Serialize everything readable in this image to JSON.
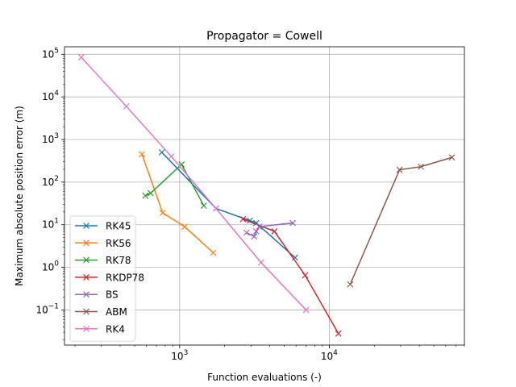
{
  "chart_data": {
    "type": "line",
    "title": "Propagator = Cowell",
    "xlabel": "Function evaluations (-)",
    "ylabel": "Maximum absolute position error (m)",
    "xscale": "log",
    "yscale": "log",
    "xlim": [
      170,
      80000
    ],
    "ylim": [
      0.015,
      150000
    ],
    "grid": true,
    "legend_position": "lower-left",
    "x_ticks": [
      {
        "value": 1000,
        "base": "10",
        "exp": "3"
      },
      {
        "value": 10000,
        "base": "10",
        "exp": "4"
      }
    ],
    "y_ticks": [
      {
        "value": 0.1,
        "base": "10",
        "exp": "−1"
      },
      {
        "value": 1,
        "base": "10",
        "exp": "0"
      },
      {
        "value": 10,
        "base": "10",
        "exp": "1"
      },
      {
        "value": 100,
        "base": "10",
        "exp": "2"
      },
      {
        "value": 1000,
        "base": "10",
        "exp": "3"
      },
      {
        "value": 10000,
        "base": "10",
        "exp": "4"
      },
      {
        "value": 100000,
        "base": "10",
        "exp": "5"
      }
    ],
    "series": [
      {
        "name": "RK45",
        "color": "#1f77b4",
        "points": [
          [
            760,
            500
          ],
          [
            1750,
            24
          ],
          [
            2950,
            12.5
          ],
          [
            3250,
            11
          ],
          [
            5900,
            1.7
          ]
        ]
      },
      {
        "name": "RK56",
        "color": "#ff7f0e",
        "points": [
          [
            560,
            450
          ],
          [
            770,
            19
          ],
          [
            1080,
            9
          ],
          [
            1680,
            2.2
          ]
        ]
      },
      {
        "name": "RK78",
        "color": "#2ca02c",
        "points": [
          [
            590,
            48
          ],
          [
            640,
            55
          ],
          [
            1030,
            260
          ],
          [
            1450,
            28
          ]
        ]
      },
      {
        "name": "RKDP78",
        "color": "#d62728",
        "points": [
          [
            2650,
            13.5
          ],
          [
            4300,
            7
          ],
          [
            6900,
            0.65
          ],
          [
            11500,
            0.028
          ]
        ]
      },
      {
        "name": "BS",
        "color": "#9467bd",
        "points": [
          [
            2800,
            6.5
          ],
          [
            3150,
            5.3
          ],
          [
            3250,
            7
          ],
          [
            3400,
            9
          ],
          [
            5700,
            11
          ]
        ]
      },
      {
        "name": "ABM",
        "color": "#8c564b",
        "points": [
          [
            13800,
            0.4
          ],
          [
            29500,
            195
          ],
          [
            41000,
            230
          ],
          [
            66000,
            380
          ]
        ]
      },
      {
        "name": "RK4",
        "color": "#e377c2",
        "points": [
          [
            220,
            85000
          ],
          [
            440,
            6000
          ],
          [
            880,
            400
          ],
          [
            1750,
            24
          ],
          [
            3500,
            1.3
          ],
          [
            7000,
            0.1
          ]
        ]
      }
    ]
  }
}
